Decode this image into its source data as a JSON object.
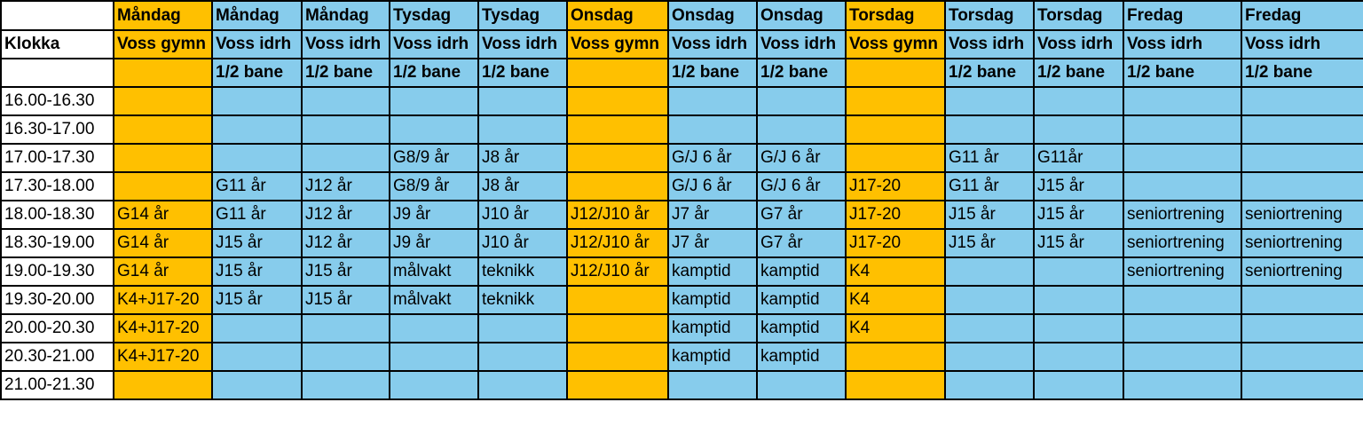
{
  "colors": {
    "orange": "#ffc000",
    "blue": "#87ccec",
    "white": "#ffffff"
  },
  "header": {
    "time_col_label": "Klokka",
    "days": [
      "Måndag",
      "Måndag",
      "Måndag",
      "Tysdag",
      "Tysdag",
      "Onsdag",
      "Onsdag",
      "Onsdag",
      "Torsdag",
      "Torsdag",
      "Torsdag",
      "Fredag",
      "Fredag"
    ],
    "venues": [
      "Voss gymn",
      "Voss idrh",
      "Voss idrh",
      "Voss idrh",
      "Voss idrh",
      "Voss gymn",
      "Voss idrh",
      "Voss idrh",
      "Voss gymn",
      "Voss idrh",
      "Voss idrh",
      "Voss idrh",
      "Voss idrh"
    ],
    "fields": [
      "",
      "1/2 bane",
      "1/2 bane",
      "1/2 bane",
      "1/2 bane",
      "",
      "1/2 bane",
      "1/2 bane",
      "",
      "1/2 bane",
      "1/2 bane",
      "1/2 bane",
      "1/2 bane"
    ],
    "column_colors": [
      "orange",
      "blue",
      "blue",
      "blue",
      "blue",
      "orange",
      "blue",
      "blue",
      "orange",
      "blue",
      "blue",
      "blue",
      "blue"
    ]
  },
  "rows": [
    {
      "time": "16.00-16.30",
      "cells": [
        "",
        "",
        "",
        "",
        "",
        "",
        "",
        "",
        "",
        "",
        "",
        "",
        ""
      ]
    },
    {
      "time": "16.30-17.00",
      "cells": [
        "",
        "",
        "",
        "",
        "",
        "",
        "",
        "",
        "",
        "",
        "",
        "",
        ""
      ]
    },
    {
      "time": "17.00-17.30",
      "cells": [
        "",
        "",
        "",
        "G8/9 år",
        "J8 år",
        "",
        "G/J 6 år",
        "G/J 6 år",
        "",
        "G11 år",
        "G11år",
        "",
        ""
      ]
    },
    {
      "time": "17.30-18.00",
      "cells": [
        "",
        "G11 år",
        "J12 år",
        "G8/9 år",
        "J8 år",
        "",
        "G/J 6 år",
        "G/J 6 år",
        "J17-20",
        "G11 år",
        "J15 år",
        "",
        ""
      ]
    },
    {
      "time": "18.00-18.30",
      "cells": [
        "G14 år",
        "G11 år",
        "J12 år",
        "J9 år",
        "J10 år",
        "J12/J10 år",
        "J7 år",
        "G7 år",
        "J17-20",
        "J15 år",
        "J15 år",
        "seniortrening",
        "seniortrening"
      ]
    },
    {
      "time": "18.30-19.00",
      "cells": [
        "G14 år",
        "J15 år",
        "J12 år",
        "J9 år",
        "J10 år",
        "J12/J10 år",
        "J7 år",
        "G7 år",
        "J17-20",
        "J15 år",
        "J15 år",
        "seniortrening",
        "seniortrening"
      ]
    },
    {
      "time": "19.00-19.30",
      "cells": [
        "G14 år",
        "J15 år",
        "J15 år",
        "målvakt",
        "teknikk",
        "J12/J10 år",
        "kamptid",
        "kamptid",
        "K4",
        "",
        "",
        "seniortrening",
        "seniortrening"
      ]
    },
    {
      "time": "19.30-20.00",
      "cells": [
        "K4+J17-20",
        "J15 år",
        "J15 år",
        "målvakt",
        "teknikk",
        "",
        "kamptid",
        "kamptid",
        "K4",
        "",
        "",
        "",
        ""
      ]
    },
    {
      "time": "20.00-20.30",
      "cells": [
        "K4+J17-20",
        "",
        "",
        "",
        "",
        "",
        "kamptid",
        "kamptid",
        "K4",
        "",
        "",
        "",
        ""
      ]
    },
    {
      "time": "20.30-21.00",
      "cells": [
        "K4+J17-20",
        "",
        "",
        "",
        "",
        "",
        "kamptid",
        "kamptid",
        "",
        "",
        "",
        "",
        ""
      ]
    },
    {
      "time": "21.00-21.30",
      "cells": [
        "",
        "",
        "",
        "",
        "",
        "",
        "",
        "",
        "",
        "",
        "",
        "",
        ""
      ]
    }
  ]
}
